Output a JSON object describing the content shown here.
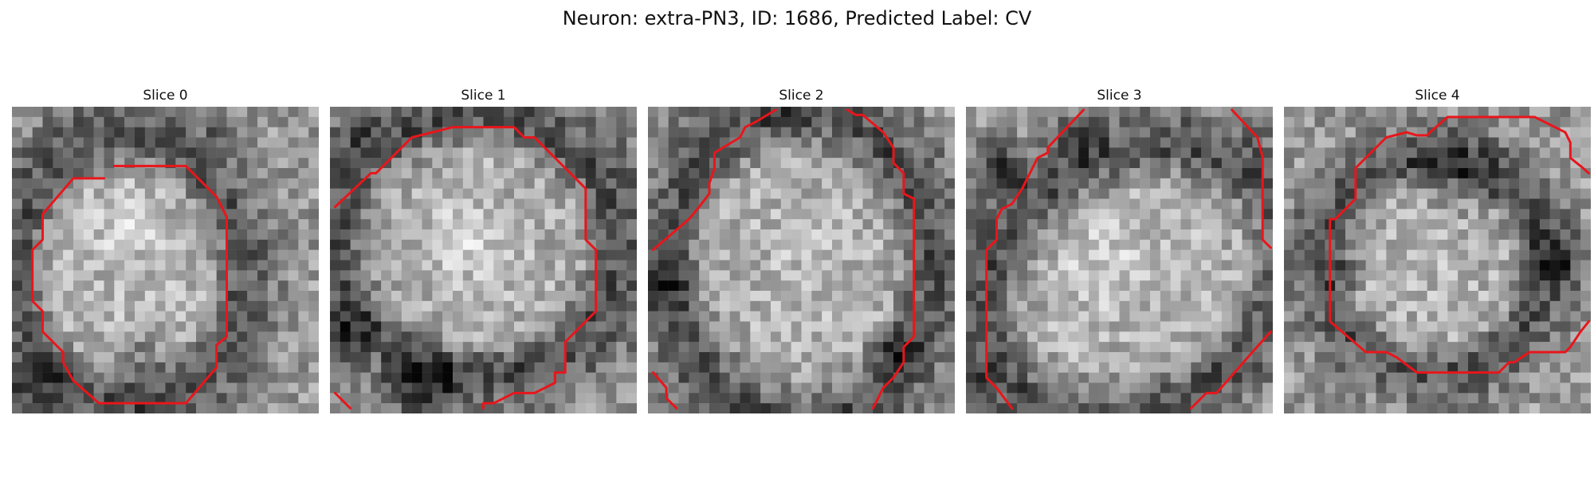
{
  "figure": {
    "suptitle": "Neuron: extra-PN3, ID: 1686, Predicted Label: CV",
    "contour_color": "#e8161b",
    "panels": [
      {
        "title": "Slice 0"
      },
      {
        "title": "Slice 1"
      },
      {
        "title": "Slice 2"
      },
      {
        "title": "Slice 3"
      },
      {
        "title": "Slice 4"
      }
    ]
  }
}
